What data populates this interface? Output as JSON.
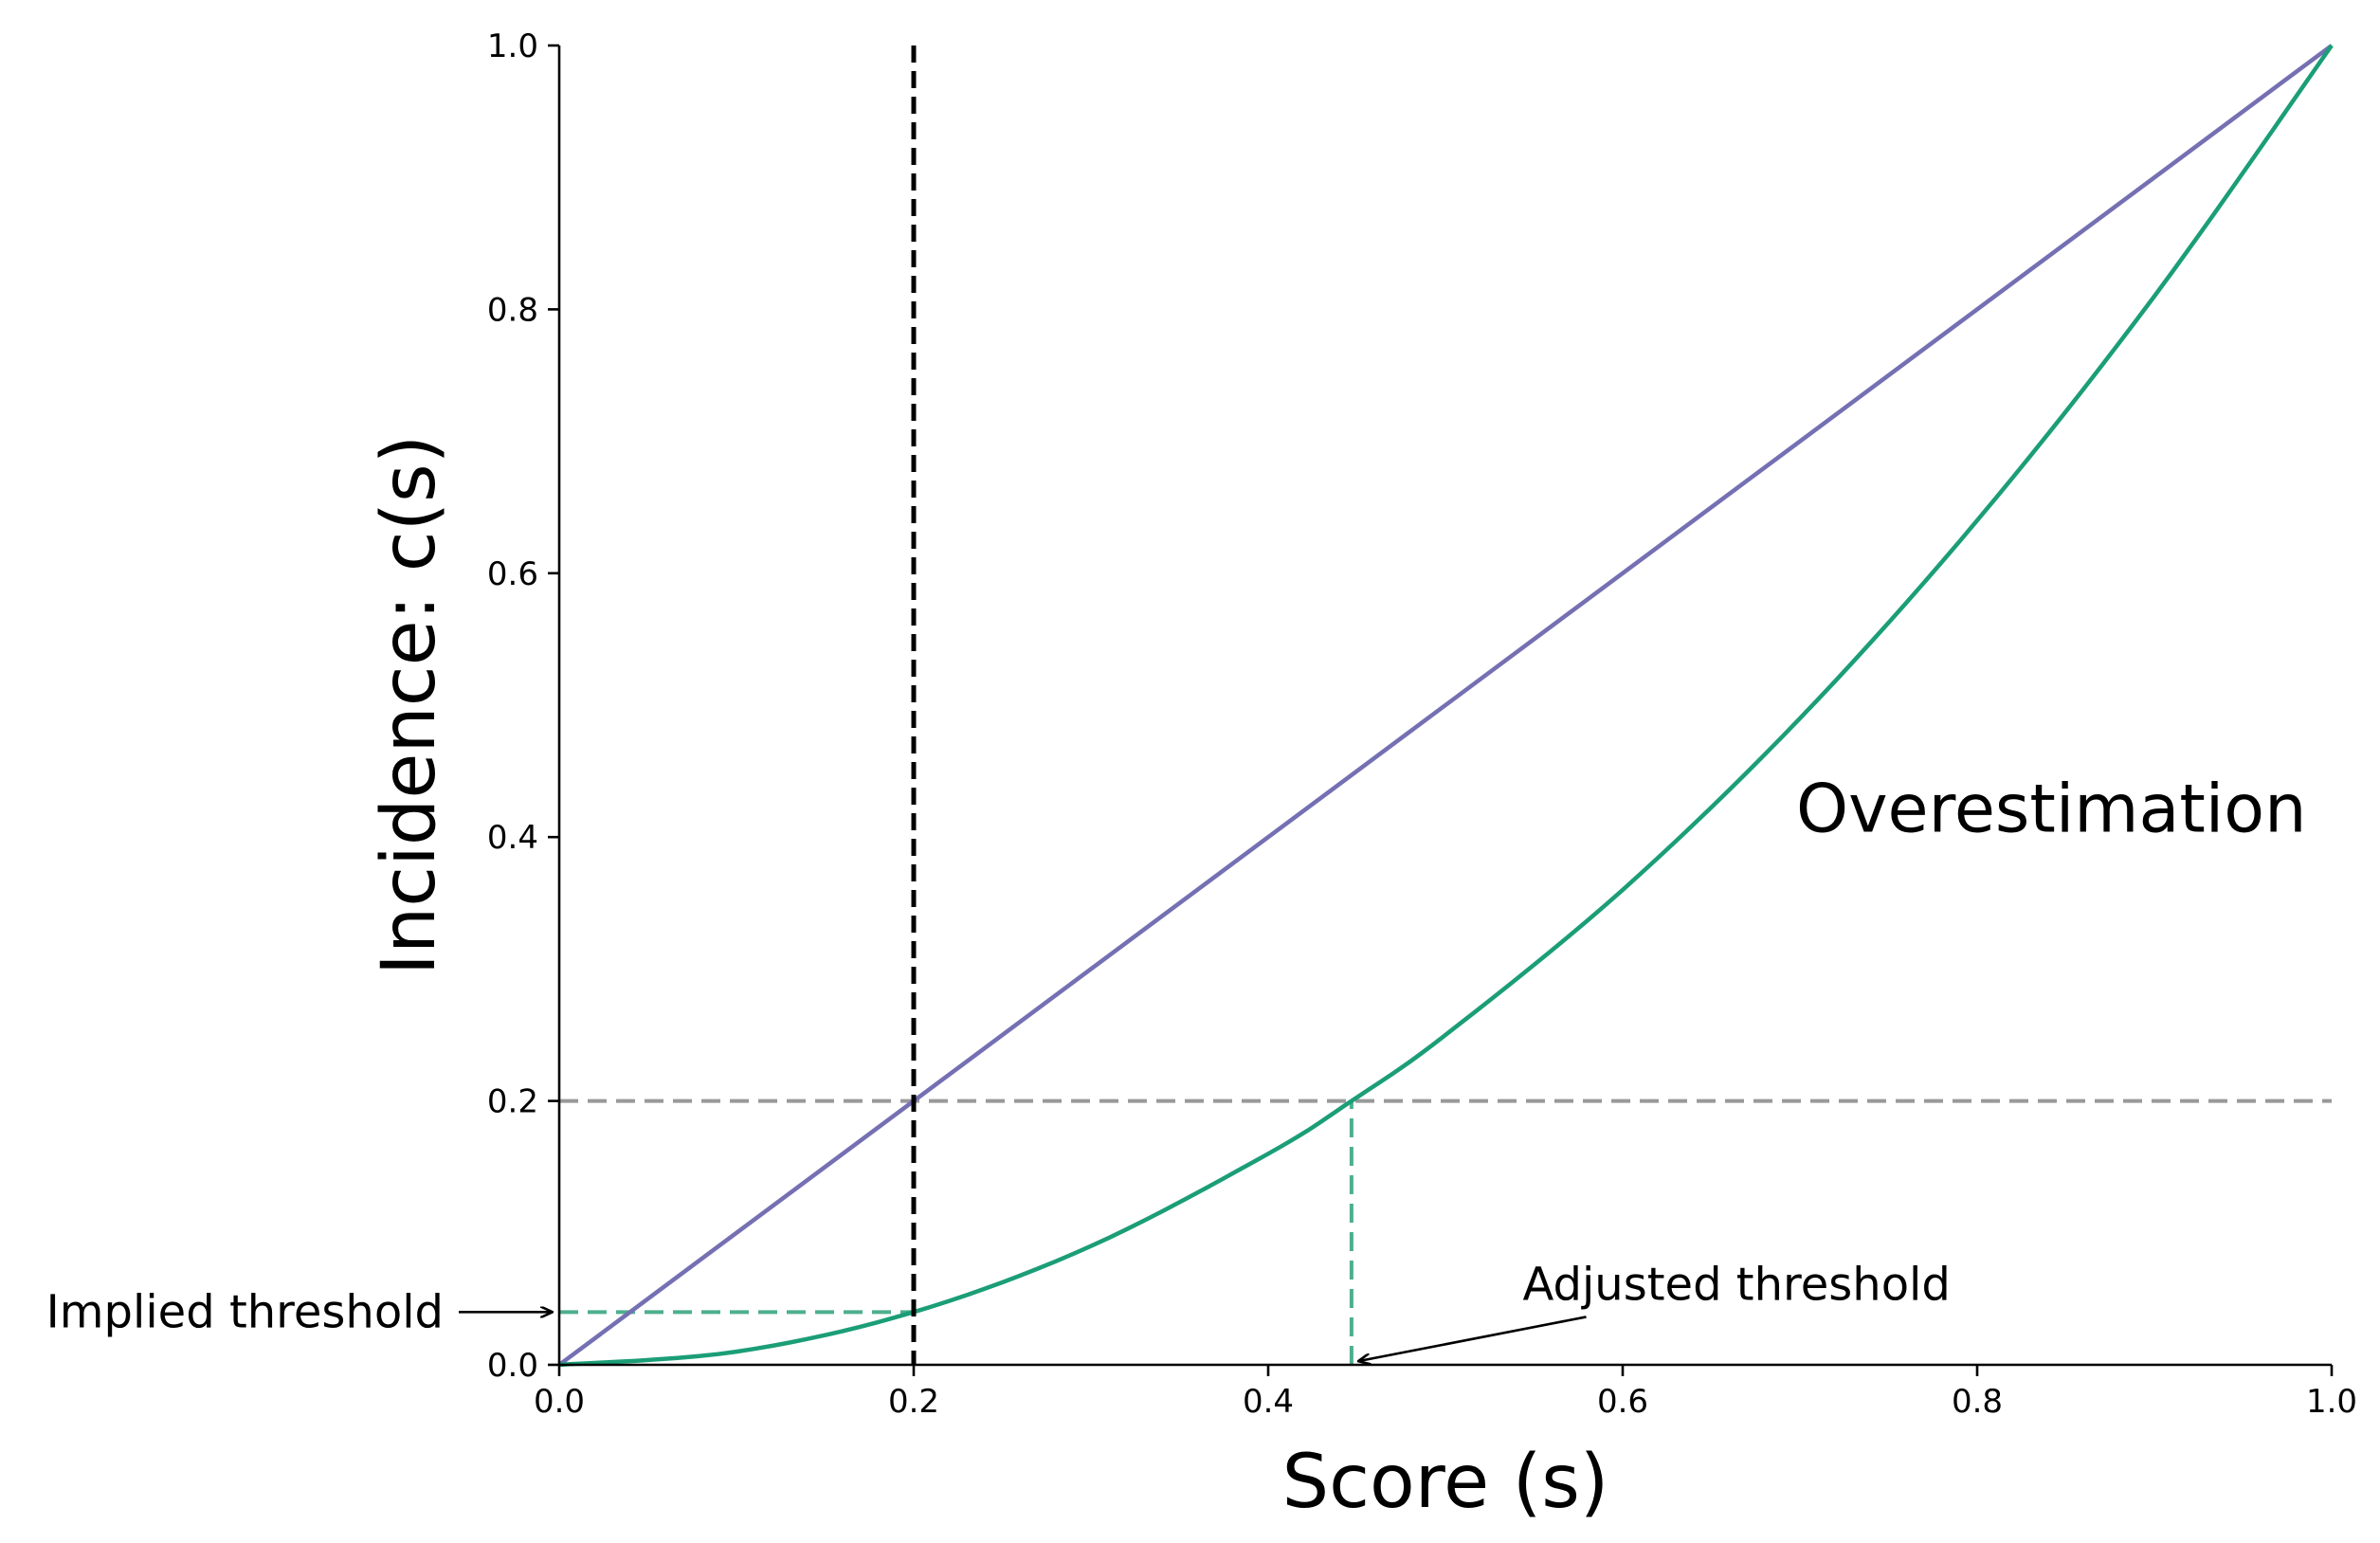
{
  "chart_data": {
    "type": "line",
    "xlabel": "Score (s)",
    "ylabel": "Incidence: c(s)",
    "xlim": [
      0.0,
      1.0
    ],
    "ylim": [
      0.0,
      1.0
    ],
    "xticks": [
      "0.0",
      "0.2",
      "0.4",
      "0.6",
      "0.8",
      "1.0"
    ],
    "yticks": [
      "0.0",
      "0.2",
      "0.4",
      "0.6",
      "0.8",
      "1.0"
    ],
    "grid": false,
    "series": [
      {
        "color": "#7570b3",
        "x": [
          0.0,
          1.0
        ],
        "y": [
          0.0,
          1.0
        ]
      },
      {
        "color": "#1b9e77",
        "x": [
          0.0,
          0.1,
          0.2,
          0.3,
          0.4,
          0.447,
          0.5,
          0.6,
          0.7,
          0.8,
          0.9,
          1.0
        ],
        "y": [
          0.0,
          0.01,
          0.04,
          0.09,
          0.16,
          0.2,
          0.25,
          0.36,
          0.49,
          0.64,
          0.81,
          1.0
        ]
      }
    ],
    "reference_lines": {
      "vertical_threshold": {
        "x": 0.2,
        "color": "#000000",
        "style": "dashed"
      },
      "horizontal_incidence": {
        "y": 0.2,
        "color": "#999999",
        "style": "dashed"
      },
      "implied_threshold": {
        "y": 0.04,
        "x_end": 0.2,
        "color": "#4daf8c",
        "style": "dashed"
      },
      "adjusted_threshold": {
        "x": 0.447,
        "y_end": 0.2,
        "color": "#4daf8c",
        "style": "dashed"
      }
    },
    "annotations": {
      "implied_threshold": {
        "text": "Implied threshold",
        "x": 0.0,
        "y": 0.04
      },
      "adjusted_threshold": {
        "text": "Adjusted threshold",
        "x": 0.447,
        "y": 0.0,
        "text_x": 0.55,
        "text_y": 0.055
      },
      "region": {
        "text": "Overestimation",
        "x": 0.7,
        "y": 0.41
      }
    }
  }
}
